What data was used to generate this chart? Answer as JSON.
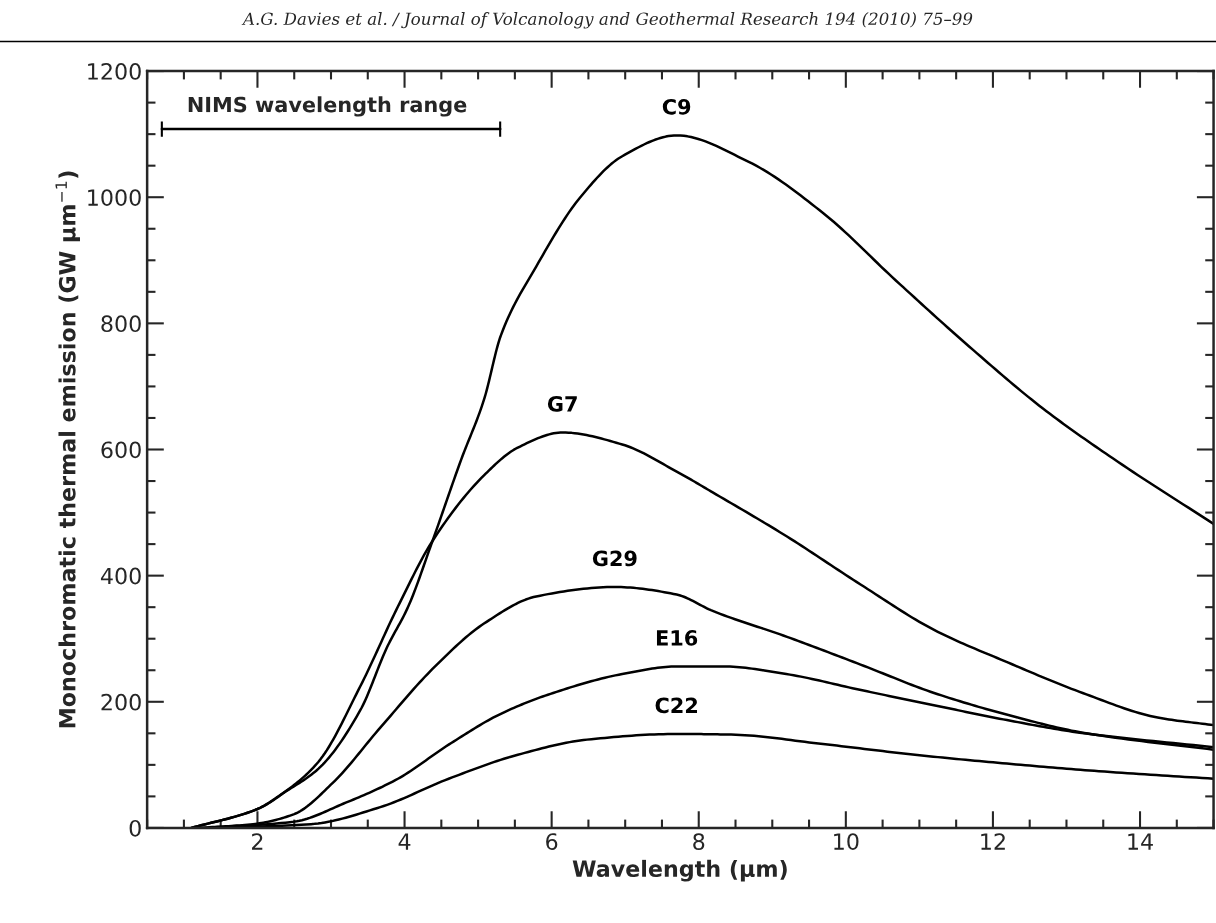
{
  "chart_data": {
    "type": "line",
    "annotations": [
      "A.G. Davies et al. / Journal of Volcanology and Geothermal Research 194 (2010) 75–99",
      "NIMS wavelength range"
    ],
    "xlabel": "Wavelength (μm)",
    "ylabel": "Monochromatic thermal emission (GW μm$^{−1}$)",
    "xlim": [
      0.5,
      15
    ],
    "ylim": [
      0,
      1200
    ],
    "xticks": [
      2,
      4,
      6,
      8,
      10,
      12,
      14
    ],
    "yticks": [
      0,
      200,
      400,
      600,
      800,
      1000,
      1200
    ],
    "grid": false,
    "legend": false,
    "marker": "none",
    "line_style": "solid",
    "series": [
      {
        "type": "line",
        "color": "#000000",
        "x": [
          0.7,
          5.3
        ],
        "values": [
          1108,
          1108
        ],
        "errors": [
          12,
          12
        ]
      },
      {
        "name": "C9",
        "color": "#000000",
        "x": [
          1.1,
          2.0,
          2.36,
          2.83,
          3.4,
          3.76,
          4.05,
          4.38,
          4.77,
          5.08,
          5.31,
          5.79,
          6.39,
          6.96,
          7.7,
          8.68,
          9.69,
          10.68,
          11.68,
          12.68,
          13.63,
          15.0
        ],
        "values": [
          0,
          30,
          56,
          94,
          187,
          286,
          351,
          455,
          584,
          679,
          781,
          890,
          1000,
          1065,
          1098,
          1056,
          975,
          868,
          763,
          665,
          586,
          482
        ]
      },
      {
        "name": "G7",
        "color": "#000000",
        "x": [
          1.1,
          2.0,
          2.36,
          2.83,
          3.4,
          3.91,
          4.38,
          5.08,
          5.54,
          6.15,
          6.96,
          7.7,
          8.19,
          9.2,
          10.2,
          11.2,
          12.21,
          13.22,
          14.24,
          15.0
        ],
        "values": [
          0,
          30,
          56,
          105,
          225,
          351,
          455,
          559,
          603,
          627,
          608,
          565,
          532,
          462,
          386,
          314,
          262,
          214,
          175,
          163
        ]
      },
      {
        "name": "G29",
        "color": "#000000",
        "x": [
          1.2,
          1.94,
          2.5,
          3.02,
          3.67,
          4.38,
          5.08,
          5.79,
          6.86,
          7.7,
          8.19,
          9.2,
          10.2,
          11.2,
          12.21,
          13.22,
          15.0
        ],
        "values": [
          0,
          6,
          22,
          71,
          159,
          252,
          324,
          367,
          382,
          370,
          344,
          303,
          259,
          214,
          179,
          151,
          124
        ]
      },
      {
        "name": "E16",
        "color": "#000000",
        "x": [
          1.3,
          2.5,
          3.2,
          3.91,
          4.6,
          5.31,
          6.02,
          6.96,
          7.7,
          8.34,
          9.19,
          10.19,
          11.18,
          12.19,
          13.18,
          15.0
        ],
        "values": [
          0,
          10,
          40,
          78,
          132,
          181,
          214,
          244,
          256,
          256,
          244,
          219,
          195,
          171,
          151,
          128
        ]
      },
      {
        "name": "C22",
        "color": "#000000",
        "x": [
          1.4,
          2.73,
          3.67,
          4.6,
          5.54,
          6.48,
          7.7,
          8.44,
          9.69,
          10.94,
          12.19,
          13.44,
          15.0
        ],
        "values": [
          0,
          6,
          33,
          78,
          116,
          140,
          149,
          148,
          133,
          116,
          102,
          90,
          78
        ]
      }
    ]
  }
}
